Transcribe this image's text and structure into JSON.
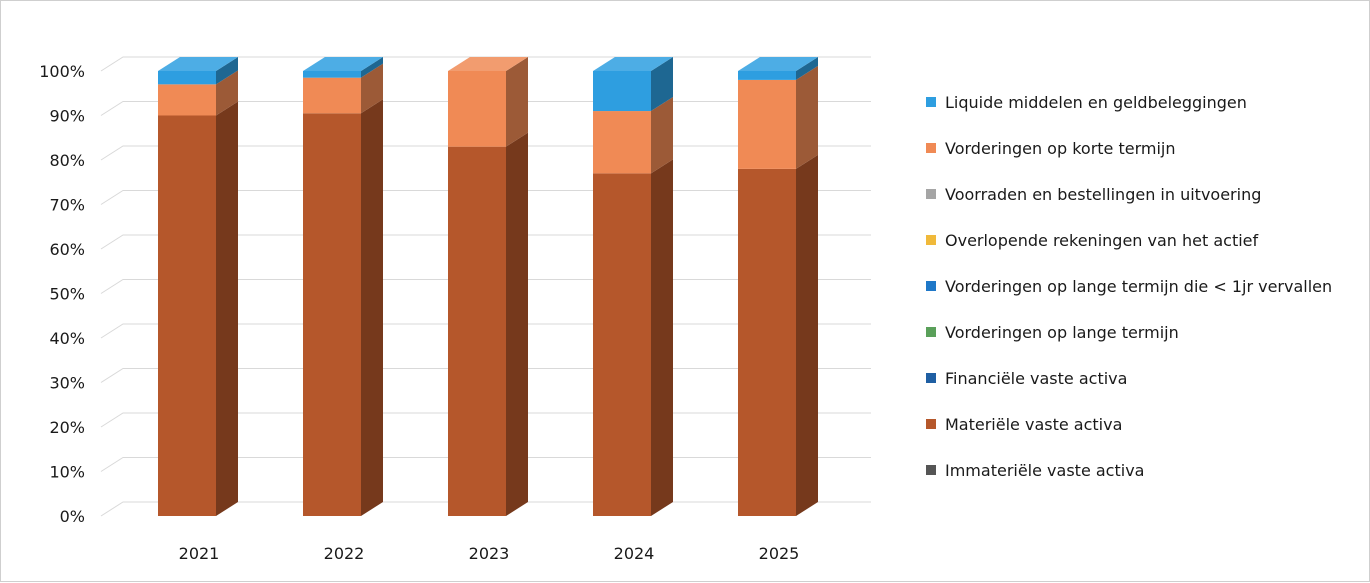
{
  "chart_data": {
    "type": "bar",
    "stacked": true,
    "three_d": true,
    "percent_stacked": true,
    "categories": [
      "2021",
      "2022",
      "2023",
      "2024",
      "2025"
    ],
    "y_ticks": [
      "0%",
      "10%",
      "20%",
      "30%",
      "40%",
      "50%",
      "60%",
      "70%",
      "80%",
      "90%",
      "100%"
    ],
    "ylim": [
      0,
      100
    ],
    "grid": true,
    "legend_position": "right",
    "series": [
      {
        "name": "Immateriële vaste activa",
        "color": "#555555",
        "values": [
          0,
          0,
          0,
          0,
          0
        ]
      },
      {
        "name": "Materiële vaste activa",
        "color": "#b5572b",
        "values": [
          90,
          90.5,
          83,
          77,
          78
        ]
      },
      {
        "name": "Financiële vaste activa",
        "color": "#1f5fa3",
        "values": [
          0,
          0,
          0,
          0,
          0
        ]
      },
      {
        "name": "Vorderingen op lange termijn",
        "color": "#5aa05a",
        "values": [
          0,
          0,
          0,
          0,
          0
        ]
      },
      {
        "name": "Vorderingen op lange termijn die < 1jr vervallen",
        "color": "#1f78c8",
        "values": [
          0,
          0,
          0,
          0,
          0
        ]
      },
      {
        "name": "Overlopende rekeningen van het actief",
        "color": "#f0b93a",
        "values": [
          0,
          0,
          0,
          0,
          0
        ]
      },
      {
        "name": "Voorraden en bestellingen in uitvoering",
        "color": "#a5a5a5",
        "values": [
          0,
          0,
          0,
          0,
          0
        ]
      },
      {
        "name": "Vorderingen op korte termijn",
        "color": "#f08a55",
        "values": [
          7,
          8,
          17,
          14,
          20
        ]
      },
      {
        "name": "Liquide middelen en geldbeleggingen",
        "color": "#2e9ee0",
        "values": [
          3,
          1.5,
          0,
          9,
          2
        ]
      }
    ],
    "legend_order": [
      "Liquide middelen en geldbeleggingen",
      "Vorderingen op korte termijn",
      "Voorraden en bestellingen in uitvoering",
      "Overlopende rekeningen van het actief",
      "Vorderingen op lange termijn die < 1jr vervallen",
      "Vorderingen op lange termijn",
      "Financiële vaste activa",
      "Materiële vaste activa",
      "Immateriële vaste activa"
    ]
  }
}
